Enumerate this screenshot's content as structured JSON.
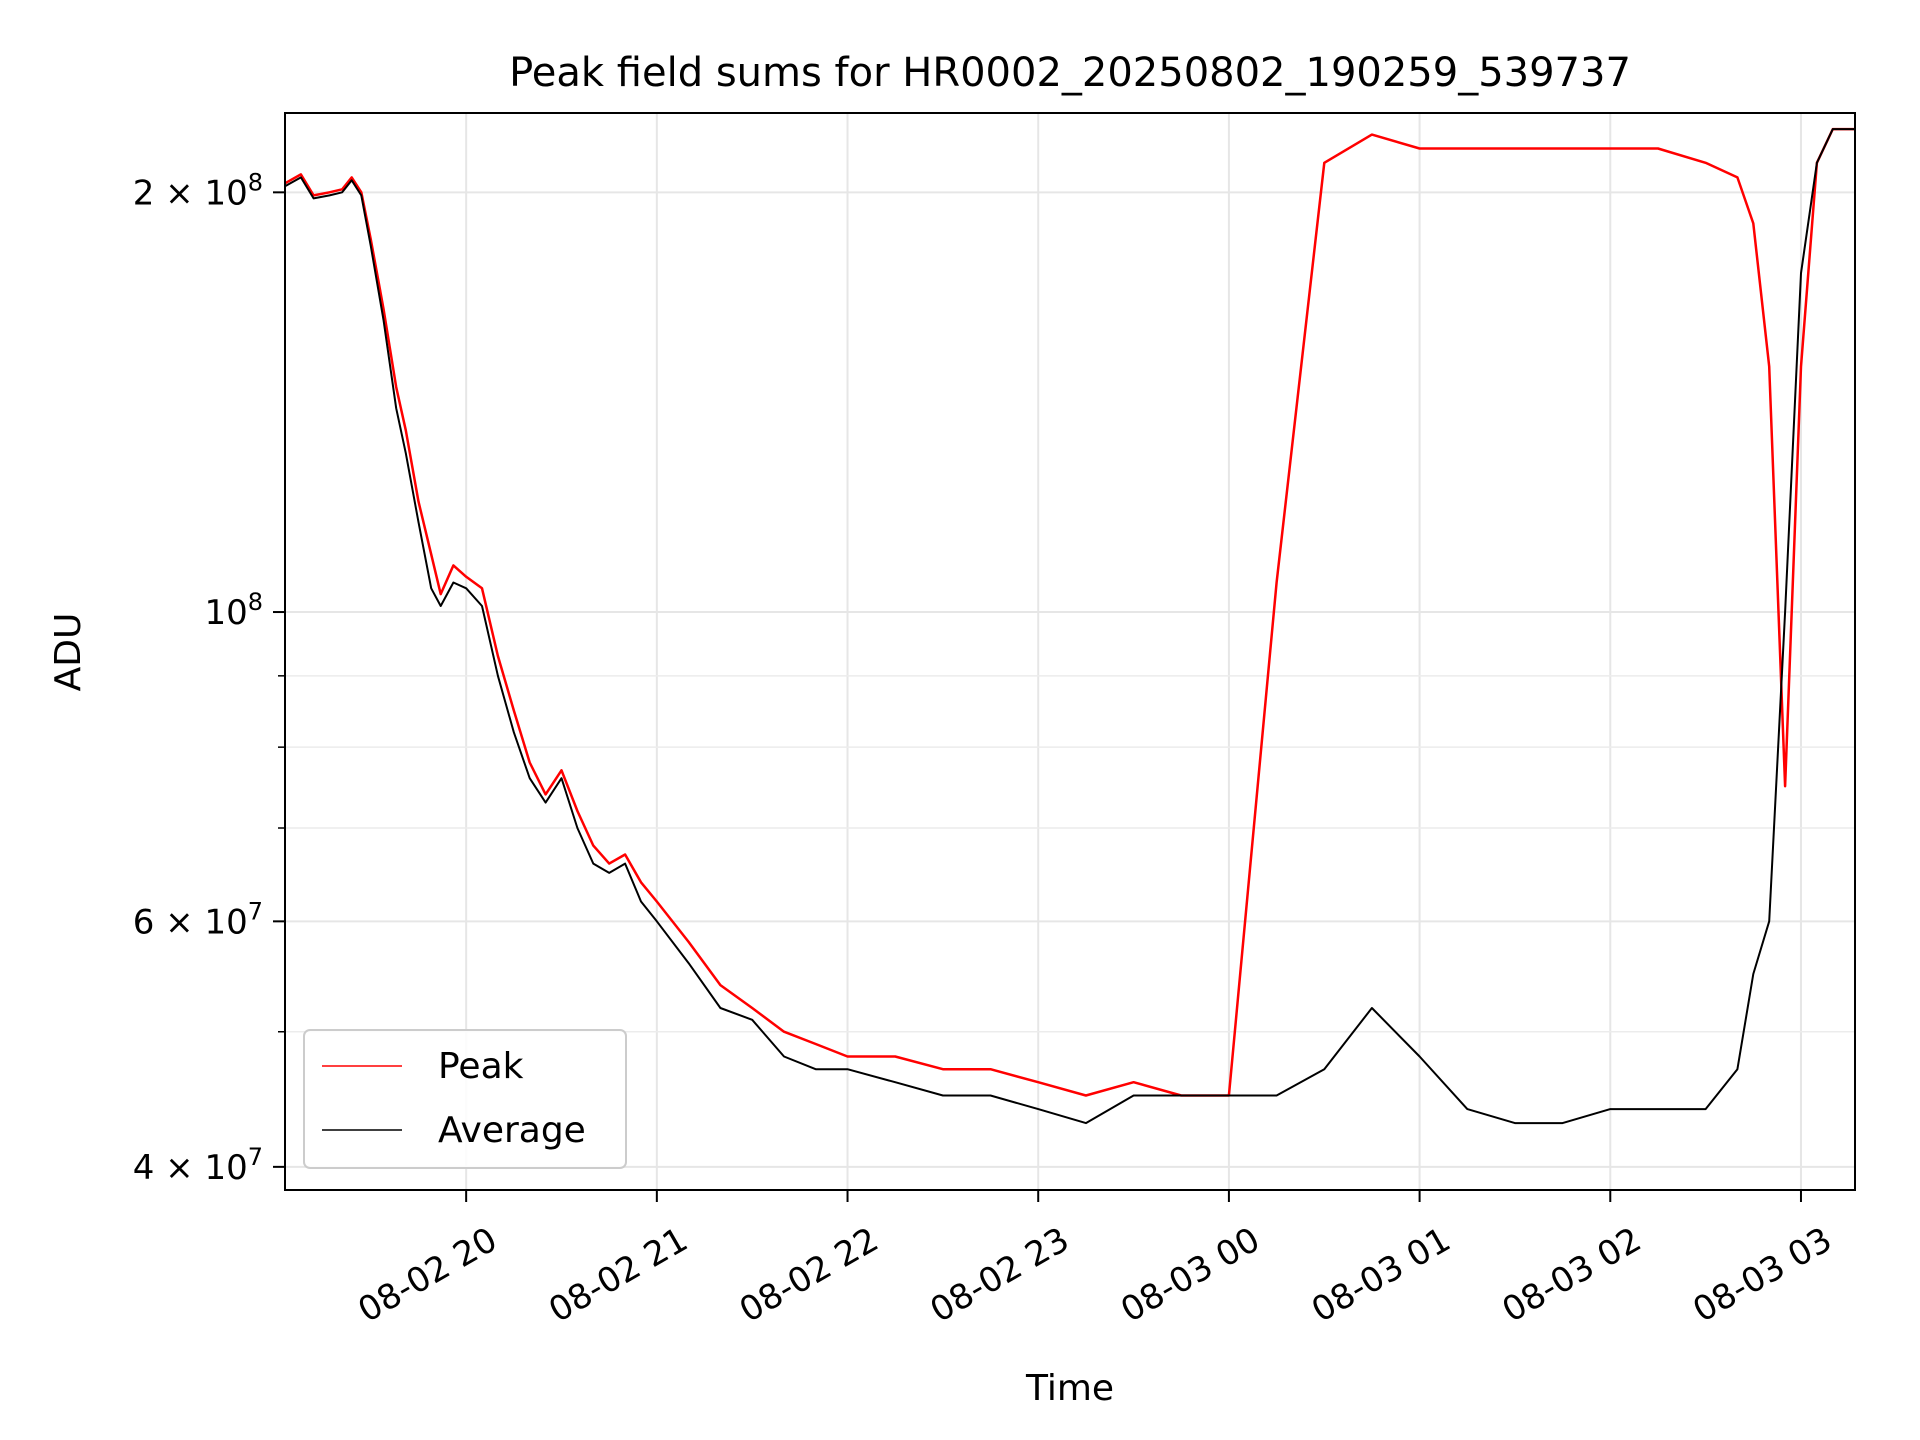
{
  "chart_data": {
    "type": "line",
    "title": "Peak field sums for HR0002_20250802_190259_539737",
    "xlabel": "Time",
    "ylabel": "ADU",
    "x_scale": "time",
    "y_scale": "log",
    "xlim": [
      "2025-08-02 19:03",
      "2025-08-03 03:17"
    ],
    "ylim": [
      38500000,
      228000000
    ],
    "x_ticks": [
      {
        "value": "2025-08-02 20:00",
        "label": "08-02 20"
      },
      {
        "value": "2025-08-02 21:00",
        "label": "08-02 21"
      },
      {
        "value": "2025-08-02 22:00",
        "label": "08-02 22"
      },
      {
        "value": "2025-08-02 23:00",
        "label": "08-02 23"
      },
      {
        "value": "2025-08-03 00:00",
        "label": "08-03 00"
      },
      {
        "value": "2025-08-03 01:00",
        "label": "08-03 01"
      },
      {
        "value": "2025-08-03 02:00",
        "label": "08-03 02"
      },
      {
        "value": "2025-08-03 03:00",
        "label": "08-03 03"
      }
    ],
    "y_ticks_major": [
      {
        "value": 40000000,
        "base": "4",
        "exp": "7"
      },
      {
        "value": 60000000,
        "base": "6",
        "exp": "7"
      },
      {
        "value": 100000000,
        "base": "",
        "exp": "8"
      },
      {
        "value": 200000000,
        "base": "2",
        "exp": "8"
      }
    ],
    "y_ticks_minor": [
      50000000,
      70000000,
      80000000,
      90000000
    ],
    "grid": true,
    "legend": {
      "position": "lower-left"
    },
    "series": [
      {
        "name": "Peak",
        "color": "#ff0000",
        "x": [
          "2025-08-02 19:03",
          "2025-08-02 19:08",
          "2025-08-02 19:12",
          "2025-08-02 19:17",
          "2025-08-02 19:21",
          "2025-08-02 19:24",
          "2025-08-02 19:27",
          "2025-08-02 19:30",
          "2025-08-02 19:34",
          "2025-08-02 19:38",
          "2025-08-02 19:41",
          "2025-08-02 19:45",
          "2025-08-02 19:49",
          "2025-08-02 19:52",
          "2025-08-02 19:56",
          "2025-08-02 20:00",
          "2025-08-02 20:05",
          "2025-08-02 20:10",
          "2025-08-02 20:15",
          "2025-08-02 20:20",
          "2025-08-02 20:25",
          "2025-08-02 20:30",
          "2025-08-02 20:35",
          "2025-08-02 20:40",
          "2025-08-02 20:45",
          "2025-08-02 20:50",
          "2025-08-02 20:55",
          "2025-08-02 21:00",
          "2025-08-02 21:10",
          "2025-08-02 21:20",
          "2025-08-02 21:30",
          "2025-08-02 21:40",
          "2025-08-02 21:50",
          "2025-08-02 22:00",
          "2025-08-02 22:15",
          "2025-08-02 22:30",
          "2025-08-02 22:45",
          "2025-08-02 23:00",
          "2025-08-02 23:15",
          "2025-08-02 23:30",
          "2025-08-02 23:45",
          "2025-08-03 00:00",
          "2025-08-03 00:15",
          "2025-08-03 00:30",
          "2025-08-03 00:45",
          "2025-08-03 01:00",
          "2025-08-03 01:15",
          "2025-08-03 01:30",
          "2025-08-03 01:45",
          "2025-08-03 02:00",
          "2025-08-03 02:15",
          "2025-08-03 02:30",
          "2025-08-03 02:40",
          "2025-08-03 02:45",
          "2025-08-03 02:50",
          "2025-08-03 02:55",
          "2025-08-03 03:00",
          "2025-08-03 03:05",
          "2025-08-03 03:10",
          "2025-08-03 03:17"
        ],
        "y": [
          203000000,
          206000000,
          199000000,
          200000000,
          201000000,
          205000000,
          200000000,
          185000000,
          165000000,
          145000000,
          135000000,
          120000000,
          110000000,
          103000000,
          108000000,
          106000000,
          104000000,
          93000000,
          85000000,
          78000000,
          74000000,
          77000000,
          72000000,
          68000000,
          66000000,
          67000000,
          64000000,
          62000000,
          58000000,
          54000000,
          52000000,
          50000000,
          49000000,
          48000000,
          48000000,
          47000000,
          47000000,
          46000000,
          45000000,
          46000000,
          45000000,
          45000000,
          105000000,
          210000000,
          220000000,
          215000000,
          215000000,
          215000000,
          215000000,
          215000000,
          215000000,
          210000000,
          205000000,
          190000000,
          150000000,
          75000000,
          150000000,
          210000000,
          222000000,
          222000000
        ]
      },
      {
        "name": "Average",
        "color": "#000000",
        "x": [
          "2025-08-02 19:03",
          "2025-08-02 19:08",
          "2025-08-02 19:12",
          "2025-08-02 19:17",
          "2025-08-02 19:21",
          "2025-08-02 19:24",
          "2025-08-02 19:27",
          "2025-08-02 19:30",
          "2025-08-02 19:34",
          "2025-08-02 19:38",
          "2025-08-02 19:41",
          "2025-08-02 19:45",
          "2025-08-02 19:49",
          "2025-08-02 19:52",
          "2025-08-02 19:56",
          "2025-08-02 20:00",
          "2025-08-02 20:05",
          "2025-08-02 20:10",
          "2025-08-02 20:15",
          "2025-08-02 20:20",
          "2025-08-02 20:25",
          "2025-08-02 20:30",
          "2025-08-02 20:35",
          "2025-08-02 20:40",
          "2025-08-02 20:45",
          "2025-08-02 20:50",
          "2025-08-02 20:55",
          "2025-08-02 21:00",
          "2025-08-02 21:10",
          "2025-08-02 21:20",
          "2025-08-02 21:30",
          "2025-08-02 21:40",
          "2025-08-02 21:50",
          "2025-08-02 22:00",
          "2025-08-02 22:15",
          "2025-08-02 22:30",
          "2025-08-02 22:45",
          "2025-08-02 23:00",
          "2025-08-02 23:15",
          "2025-08-02 23:30",
          "2025-08-02 23:45",
          "2025-08-03 00:00",
          "2025-08-03 00:15",
          "2025-08-03 00:30",
          "2025-08-03 00:45",
          "2025-08-03 01:00",
          "2025-08-03 01:15",
          "2025-08-03 01:30",
          "2025-08-03 01:45",
          "2025-08-03 02:00",
          "2025-08-03 02:15",
          "2025-08-03 02:30",
          "2025-08-03 02:40",
          "2025-08-03 02:45",
          "2025-08-03 02:50",
          "2025-08-03 02:55",
          "2025-08-03 03:00",
          "2025-08-03 03:05",
          "2025-08-03 03:10",
          "2025-08-03 03:17"
        ],
        "y": [
          202000000,
          205000000,
          198000000,
          199000000,
          200000000,
          204000000,
          199000000,
          183000000,
          162000000,
          140000000,
          130000000,
          116000000,
          104000000,
          101000000,
          105000000,
          104000000,
          101000000,
          90000000,
          82000000,
          76000000,
          73000000,
          76000000,
          70000000,
          66000000,
          65000000,
          66000000,
          62000000,
          60000000,
          56000000,
          52000000,
          51000000,
          48000000,
          47000000,
          47000000,
          46000000,
          45000000,
          45000000,
          44000000,
          43000000,
          45000000,
          45000000,
          45000000,
          45000000,
          47000000,
          52000000,
          48000000,
          44000000,
          43000000,
          43000000,
          44000000,
          44000000,
          44000000,
          47000000,
          55000000,
          60000000,
          100000000,
          175000000,
          210000000,
          222000000,
          222000000
        ]
      }
    ]
  }
}
